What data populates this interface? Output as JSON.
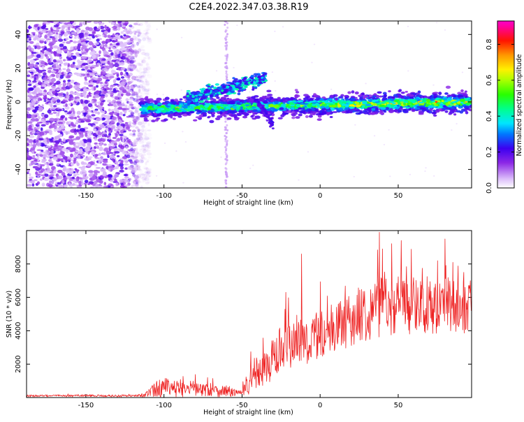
{
  "figure": {
    "title": "C2E4.2022.347.03.38.R19"
  },
  "chart_data": [
    {
      "type": "heatmap",
      "title": "C2E4.2022.347.03.38.R19",
      "xlabel": "Height of straight line (km)",
      "ylabel": "Frequency (Hz)",
      "xlim": [
        -188,
        97
      ],
      "ylim": [
        -51,
        48
      ],
      "xticks": [
        -150,
        -100,
        -50,
        0,
        50
      ],
      "yticks": [
        -40,
        -20,
        0,
        20,
        40
      ],
      "colorbar": {
        "label": "Normalized spectral amplitude",
        "range": [
          0.0,
          0.93
        ],
        "ticks": [
          0.0,
          0.2,
          0.4,
          0.6,
          0.8
        ],
        "colormap": "gist_ncar-like: white-violet-blue-cyan-green-yellow-orange-red-magenta"
      },
      "features": [
        {
          "name": "noise region",
          "x_range": [
            -188,
            -115
          ],
          "y_range": [
            -51,
            48
          ],
          "amplitude": 0.05
        },
        {
          "name": "main signal band",
          "x_range": [
            -115,
            97
          ],
          "y_center_start": -4,
          "y_center_end": 0,
          "amplitude_peak": 0.85
        },
        {
          "name": "upper branch",
          "x_range": [
            -85,
            -35
          ],
          "y_start": 2,
          "y_end": 14
        },
        {
          "name": "lower branch",
          "x_range": [
            -40,
            -30
          ],
          "y_start": 0,
          "y_end": -14
        },
        {
          "name": "vertical line",
          "x": -60,
          "y_range": [
            -51,
            48
          ]
        }
      ]
    },
    {
      "type": "line",
      "xlabel": "Height of straight line (km)",
      "ylabel": "SNR (10 * v/v)",
      "xlim": [
        -188,
        97
      ],
      "ylim": [
        0,
        10000
      ],
      "xticks": [
        -150,
        -100,
        -50,
        0,
        50
      ],
      "yticks": [
        2000,
        4000,
        6000,
        8000
      ],
      "color": "#ee2222",
      "series": [
        {
          "name": "SNR",
          "x": [
            -188,
            -180,
            -170,
            -160,
            -150,
            -140,
            -130,
            -120,
            -115,
            -110,
            -105,
            -100,
            -95,
            -90,
            -85,
            -80,
            -75,
            -70,
            -65,
            -60,
            -55,
            -50,
            -45,
            -40,
            -35,
            -30,
            -25,
            -20,
            -15,
            -10,
            -5,
            0,
            5,
            10,
            15,
            20,
            25,
            30,
            35,
            40,
            45,
            50,
            55,
            60,
            65,
            70,
            75,
            80,
            85,
            90,
            97
          ],
          "mean": [
            100,
            100,
            110,
            100,
            120,
            110,
            100,
            110,
            120,
            250,
            500,
            650,
            450,
            600,
            500,
            550,
            450,
            480,
            380,
            400,
            300,
            250,
            900,
            1400,
            1800,
            2300,
            2600,
            3000,
            3400,
            3300,
            3500,
            3800,
            4000,
            4200,
            4400,
            4600,
            5000,
            5200,
            5300,
            5600,
            5500,
            5600,
            5400,
            5700,
            5500,
            5600,
            5400,
            5700,
            5500,
            5400,
            5300
          ],
          "spread": [
            60,
            60,
            60,
            60,
            60,
            60,
            60,
            60,
            80,
            250,
            450,
            600,
            450,
            550,
            450,
            500,
            400,
            400,
            350,
            350,
            250,
            200,
            700,
            900,
            1000,
            1200,
            1200,
            1300,
            1400,
            1400,
            1300,
            1400,
            1400,
            1400,
            1400,
            1500,
            1600,
            1700,
            1700,
            1800,
            1700,
            1700,
            1700,
            1700,
            1600,
            1600,
            1600,
            1600,
            1500,
            1500,
            1500
          ]
        }
      ],
      "spikes": [
        {
          "x": -12,
          "y": 8600
        },
        {
          "x": -22,
          "y": 6300
        },
        {
          "x": 38,
          "y": 9900
        },
        {
          "x": 52,
          "y": 9400
        },
        {
          "x": 92,
          "y": 7500
        }
      ]
    }
  ]
}
